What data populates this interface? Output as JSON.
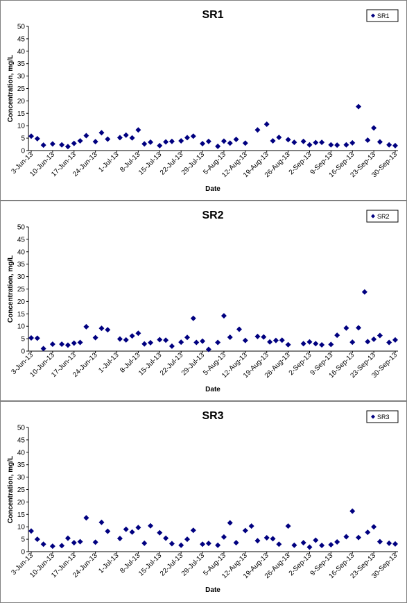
{
  "chart_data": [
    {
      "type": "scatter",
      "title": "SR1",
      "xlabel": "Date",
      "ylabel": "Concentration, mg/L",
      "ylim": [
        0,
        50
      ],
      "yticks": [
        "0",
        "5",
        "10",
        "15",
        "20",
        "25",
        "30",
        "35",
        "40",
        "45",
        "50"
      ],
      "xticks": [
        "3-Jun-13",
        "10-Jun-13",
        "17-Jun-13",
        "24-Jun-13",
        "1-Jul-13",
        "8-Jul-13",
        "15-Jul-13",
        "22-Jul-13",
        "29-Jul-13",
        "5-Aug-13",
        "12-Aug-13",
        "19-Aug-13",
        "26-Aug-13",
        "2-Sep-13",
        "9-Sep-13",
        "16-Sep-13",
        "23-Sep-13",
        "30-Sep-13"
      ],
      "grid": false,
      "legend_position": "top-right",
      "color": "#000080",
      "series": [
        {
          "name": "SR1",
          "x": [
            "2013-06-03",
            "2013-06-05",
            "2013-06-07",
            "2013-06-10",
            "2013-06-13",
            "2013-06-15",
            "2013-06-17",
            "2013-06-19",
            "2013-06-21",
            "2013-06-24",
            "2013-06-26",
            "2013-06-28",
            "2013-07-02",
            "2013-07-04",
            "2013-07-06",
            "2013-07-08",
            "2013-07-10",
            "2013-07-12",
            "2013-07-15",
            "2013-07-17",
            "2013-07-19",
            "2013-07-22",
            "2013-07-24",
            "2013-07-26",
            "2013-07-29",
            "2013-07-31",
            "2013-08-03",
            "2013-08-05",
            "2013-08-07",
            "2013-08-09",
            "2013-08-12",
            "2013-08-16",
            "2013-08-19",
            "2013-08-21",
            "2013-08-23",
            "2013-08-26",
            "2013-08-28",
            "2013-08-31",
            "2013-09-02",
            "2013-09-04",
            "2013-09-06",
            "2013-09-09",
            "2013-09-11",
            "2013-09-14",
            "2013-09-16",
            "2013-09-18",
            "2013-09-21",
            "2013-09-23",
            "2013-09-25",
            "2013-09-28",
            "2013-09-30"
          ],
          "y": [
            5.8,
            4.8,
            2.2,
            2.7,
            2.3,
            1.6,
            2.9,
            3.9,
            6.0,
            3.6,
            7.2,
            4.6,
            5.2,
            6.2,
            5.1,
            8.3,
            2.7,
            3.4,
            2.0,
            3.5,
            3.7,
            3.9,
            5.2,
            5.8,
            2.8,
            3.7,
            1.7,
            3.8,
            3.0,
            4.5,
            3.0,
            8.3,
            10.6,
            3.9,
            5.3,
            4.4,
            3.3,
            3.7,
            2.3,
            3.2,
            3.3,
            2.3,
            2.2,
            2.3,
            3.1,
            17.7,
            4.2,
            9.1,
            3.5,
            2.3,
            2.0
          ]
        }
      ]
    },
    {
      "type": "scatter",
      "title": "SR2",
      "xlabel": "Date",
      "ylabel": "Concentration, mg/L",
      "ylim": [
        0,
        50
      ],
      "yticks": [
        "0",
        "5",
        "10",
        "15",
        "20",
        "25",
        "30",
        "35",
        "40",
        "45",
        "50"
      ],
      "xticks": [
        "3-Jun-13",
        "10-Jun-13",
        "17-Jun-13",
        "24-Jun-13",
        "1-Jul-13",
        "8-Jul-13",
        "15-Jul-13",
        "22-Jul-13",
        "29-Jul-13",
        "5-Aug-13",
        "12-Aug-13",
        "19-Aug-13",
        "26-Aug-13",
        "2-Sep-13",
        "9-Sep-13",
        "16-Sep-13",
        "23-Sep-13",
        "30-Sep-13"
      ],
      "grid": false,
      "legend_position": "top-right",
      "color": "#000080",
      "series": [
        {
          "name": "SR2",
          "x": [
            "2013-06-03",
            "2013-06-05",
            "2013-06-07",
            "2013-06-10",
            "2013-06-13",
            "2013-06-15",
            "2013-06-17",
            "2013-06-19",
            "2013-06-21",
            "2013-06-24",
            "2013-06-26",
            "2013-06-28",
            "2013-07-02",
            "2013-07-04",
            "2013-07-06",
            "2013-07-08",
            "2013-07-10",
            "2013-07-12",
            "2013-07-15",
            "2013-07-17",
            "2013-07-19",
            "2013-07-22",
            "2013-07-24",
            "2013-07-26",
            "2013-07-27",
            "2013-07-29",
            "2013-07-31",
            "2013-08-03",
            "2013-08-05",
            "2013-08-07",
            "2013-08-10",
            "2013-08-12",
            "2013-08-16",
            "2013-08-18",
            "2013-08-20",
            "2013-08-22",
            "2013-08-24",
            "2013-08-26",
            "2013-08-31",
            "2013-09-02",
            "2013-09-04",
            "2013-09-06",
            "2013-09-09",
            "2013-09-11",
            "2013-09-14",
            "2013-09-16",
            "2013-09-18",
            "2013-09-20",
            "2013-09-21",
            "2013-09-23",
            "2013-09-25",
            "2013-09-28",
            "2013-09-30"
          ],
          "y": [
            5.3,
            5.2,
            1.0,
            2.8,
            2.8,
            2.4,
            3.2,
            3.5,
            9.8,
            5.4,
            9.2,
            8.6,
            4.9,
            4.5,
            6.1,
            7.2,
            2.9,
            3.4,
            4.6,
            4.4,
            2.0,
            3.6,
            5.5,
            13.2,
            3.5,
            4.0,
            0.7,
            3.5,
            14.2,
            5.6,
            8.8,
            4.3,
            5.9,
            5.7,
            3.7,
            4.3,
            4.4,
            2.6,
            3.0,
            3.7,
            3.0,
            2.5,
            2.7,
            6.4,
            9.3,
            3.6,
            9.4,
            23.8,
            3.8,
            4.8,
            6.3,
            3.5,
            4.5
          ]
        }
      ]
    },
    {
      "type": "scatter",
      "title": "SR3",
      "xlabel": "Date",
      "ylabel": "Concentration, mg/L",
      "ylim": [
        0,
        50
      ],
      "yticks": [
        "0",
        "5",
        "10",
        "15",
        "20",
        "25",
        "30",
        "35",
        "40",
        "45",
        "50"
      ],
      "xticks": [
        "3-Jun-13",
        "10-Jun-13",
        "17-Jun-13",
        "24-Jun-13",
        "1-Jul-13",
        "8-Jul-13",
        "15-Jul-13",
        "22-Jul-13",
        "29-Jul-13",
        "5-Aug-13",
        "12-Aug-13",
        "19-Aug-13",
        "26-Aug-13",
        "2-Sep-13",
        "9-Sep-13",
        "16-Sep-13",
        "23-Sep-13",
        "30-Sep-13"
      ],
      "grid": false,
      "legend_position": "top-right",
      "color": "#000080",
      "series": [
        {
          "name": "SR3",
          "x": [
            "2013-06-03",
            "2013-06-05",
            "2013-06-07",
            "2013-06-10",
            "2013-06-13",
            "2013-06-15",
            "2013-06-17",
            "2013-06-19",
            "2013-06-21",
            "2013-06-24",
            "2013-06-26",
            "2013-06-28",
            "2013-07-02",
            "2013-07-04",
            "2013-07-06",
            "2013-07-08",
            "2013-07-10",
            "2013-07-12",
            "2013-07-15",
            "2013-07-17",
            "2013-07-19",
            "2013-07-22",
            "2013-07-24",
            "2013-07-26",
            "2013-07-29",
            "2013-07-31",
            "2013-08-03",
            "2013-08-05",
            "2013-08-07",
            "2013-08-09",
            "2013-08-12",
            "2013-08-14",
            "2013-08-16",
            "2013-08-19",
            "2013-08-21",
            "2013-08-23",
            "2013-08-26",
            "2013-08-28",
            "2013-08-31",
            "2013-09-02",
            "2013-09-04",
            "2013-09-06",
            "2013-09-09",
            "2013-09-11",
            "2013-09-14",
            "2013-09-16",
            "2013-09-18",
            "2013-09-21",
            "2013-09-23",
            "2013-09-25",
            "2013-09-28",
            "2013-09-30"
          ],
          "y": [
            8.3,
            5.0,
            3.0,
            2.2,
            2.4,
            5.4,
            3.6,
            4.0,
            13.6,
            3.8,
            11.8,
            8.2,
            5.3,
            9.0,
            7.9,
            9.7,
            3.4,
            10.4,
            7.6,
            5.4,
            3.2,
            2.6,
            5.0,
            8.6,
            3.0,
            3.3,
            2.6,
            5.9,
            11.6,
            3.6,
            8.5,
            10.3,
            4.4,
            5.6,
            5.2,
            3.0,
            10.3,
            2.6,
            3.6,
            1.8,
            4.6,
            2.5,
            2.8,
            3.9,
            6.0,
            16.3,
            5.7,
            7.8,
            10.0,
            4.0,
            3.4,
            3.1
          ]
        }
      ]
    }
  ]
}
